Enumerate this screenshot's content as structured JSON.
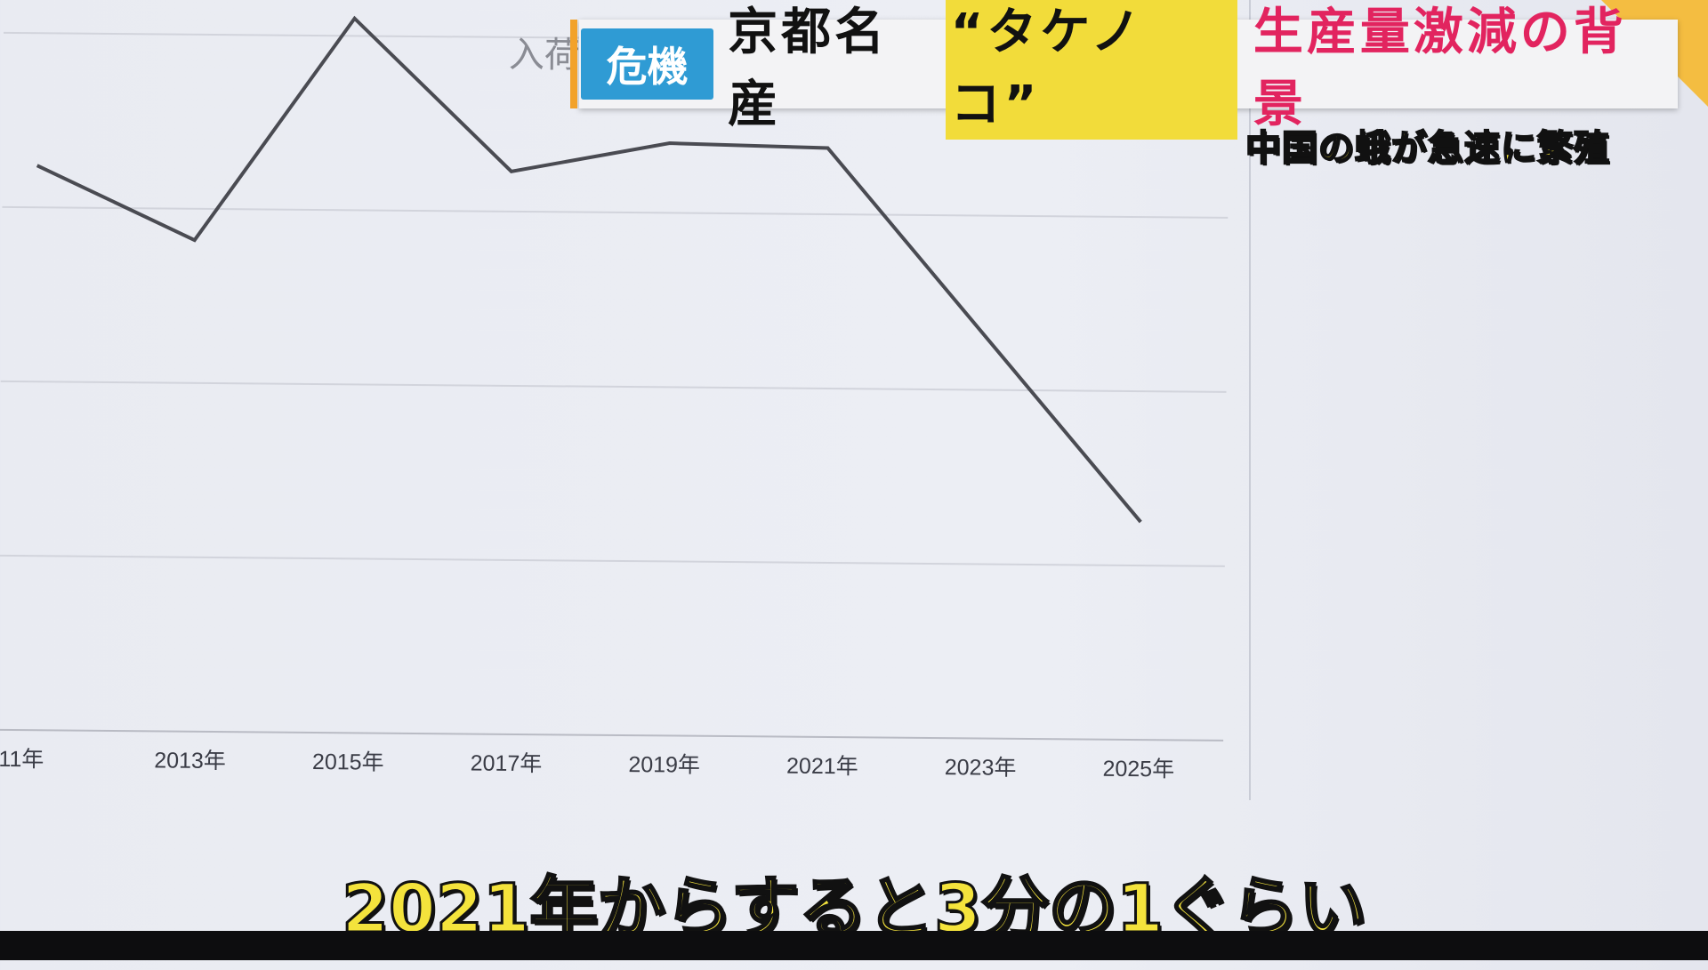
{
  "headline": {
    "tag": "危機",
    "title_black": "京都名産",
    "title_highlight": "“タケノコ”",
    "title_pink": "生産量激減の背景",
    "subheading": "中国の蛾が急速に繁殖"
  },
  "subtitle": "2021年からすると3分の1ぐらい",
  "colors": {
    "tag_bg": "#2f9bd4",
    "highlight_bg": "#f2dc3a",
    "pink_text": "#e2245f",
    "caption_text": "#f4e33c",
    "line": "#4a4b52"
  },
  "chart_data": {
    "type": "line",
    "ylabel": "入荷",
    "x_tick_labels": [
      "11年",
      "2013年",
      "2015年",
      "2017年",
      "2019年",
      "2021年",
      "2023年",
      "2025年"
    ],
    "x_ticks": [
      2011,
      2013,
      2015,
      2017,
      2019,
      2021,
      2023,
      2025
    ],
    "xlim": [
      2011,
      2025
    ],
    "ylim": [
      0,
      4.2
    ],
    "y_units": "gridline intervals (no y tick labels visible)",
    "grid": true,
    "series": [
      {
        "x": [
          2011,
          2013,
          2015,
          2017,
          2019,
          2021,
          2025
        ],
        "y": [
          3.24,
          2.82,
          4.1,
          3.23,
          3.4,
          3.38,
          1.25
        ]
      }
    ]
  }
}
